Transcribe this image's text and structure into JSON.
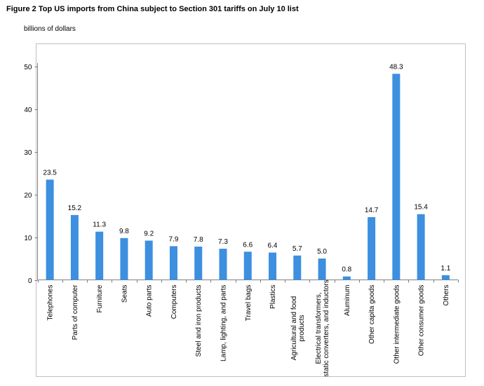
{
  "figure": {
    "title": "Figure 2 Top US imports from China subject to Section 301 tariffs on July 10 list",
    "unit_label": "billions of dollars"
  },
  "chart_data": {
    "type": "bar",
    "title": "Figure 2 Top US imports from China subject to Section 301 tariffs on July 10 list",
    "ylabel": "billions of dollars",
    "xlabel": "",
    "ylim": [
      0,
      50
    ],
    "yticks": [
      0,
      10,
      20,
      30,
      40,
      50
    ],
    "grid": false,
    "legend": "none",
    "bar_color": "#3d8fe0",
    "categories": [
      [
        "Telephones"
      ],
      [
        "Parts of computer"
      ],
      [
        "Furniture"
      ],
      [
        "Seats"
      ],
      [
        "Auto parts"
      ],
      [
        "Computers"
      ],
      [
        "Steel and iron products"
      ],
      [
        "Lamp, lighting, and parts"
      ],
      [
        "Travel bags"
      ],
      [
        "Plastics"
      ],
      [
        "Agricultural and food",
        "products"
      ],
      [
        "Electrical transformers,",
        "static converters, and inductors"
      ],
      [
        "Aluminum"
      ],
      [
        "Other capita goods"
      ],
      [
        "Other intermediate goods"
      ],
      [
        "Other consumer goods"
      ],
      [
        "Others"
      ]
    ],
    "values": [
      23.5,
      15.2,
      11.3,
      9.8,
      9.2,
      7.9,
      7.8,
      7.3,
      6.6,
      6.4,
      5.7,
      5.0,
      0.8,
      14.7,
      48.3,
      15.4,
      1.1
    ],
    "data_labels": [
      "23.5",
      "15.2",
      "11.3",
      "9.8",
      "9.2",
      "7.9",
      "7.8",
      "7.3",
      "6.6",
      "6.4",
      "5.7",
      "5.0",
      "0.8",
      "14.7",
      "48.3",
      "15.4",
      "1.1"
    ]
  }
}
